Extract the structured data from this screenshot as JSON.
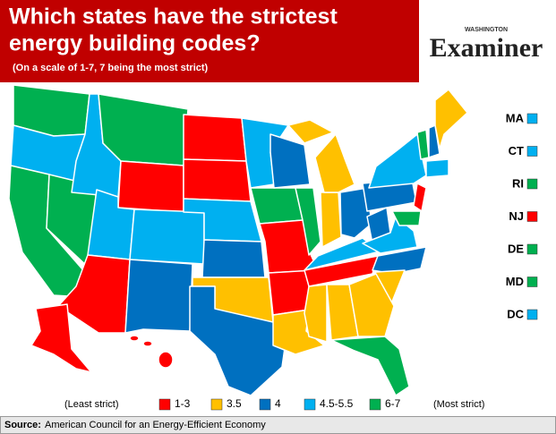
{
  "header": {
    "title_lines": [
      "Which states have the strictest",
      "energy building codes?"
    ],
    "subtitle": "(On a scale of 1-7, 7 being the most strict)",
    "logo_top": "WASHINGTON",
    "logo": "Examiner"
  },
  "side_labels": [
    {
      "label": "MA",
      "color": "#00b0f0"
    },
    {
      "label": "CT",
      "color": "#00b0f0"
    },
    {
      "label": "RI",
      "color": "#00b050"
    },
    {
      "label": "NJ",
      "color": "#ff0000"
    },
    {
      "label": "DE",
      "color": "#00b050"
    },
    {
      "label": "MD",
      "color": "#00b050"
    },
    {
      "label": "DC",
      "color": "#00b0f0"
    }
  ],
  "legend": {
    "least": "(Least strict)",
    "most": "(Most strict)",
    "items": [
      {
        "label": "1-3",
        "color": "#ff0000"
      },
      {
        "label": "3.5",
        "color": "#ffc000"
      },
      {
        "label": "4",
        "color": "#0070c0"
      },
      {
        "label": "4.5-5.5",
        "color": "#00b0f0"
      },
      {
        "label": "6-7",
        "color": "#00b050"
      }
    ]
  },
  "source": {
    "label": "Source:",
    "text": "American Council for an Energy-Efficient Economy"
  }
}
